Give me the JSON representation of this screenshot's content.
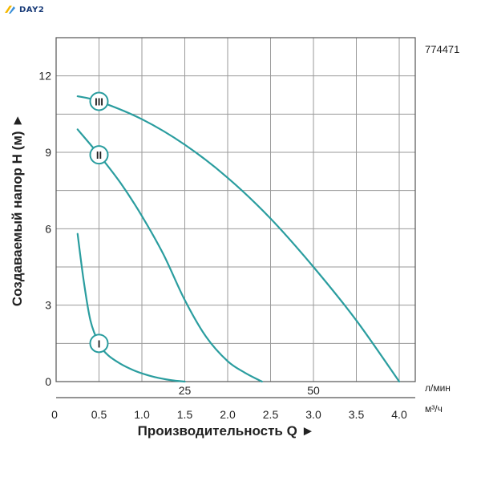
{
  "logo": {
    "text": "DAY2"
  },
  "chart_data": {
    "type": "line",
    "code": "774471",
    "xlabel": "Производительность Q ►",
    "ylabel": "Создаваемый напор H (м) ►",
    "x_unit_primary": "м³/ч",
    "x_unit_secondary": "л/мин",
    "xlim": [
      0,
      4.0
    ],
    "ylim": [
      0,
      13.5
    ],
    "x_ticks": [
      "0",
      "0.5",
      "1.0",
      "1.5",
      "2.0",
      "2.5",
      "3.0",
      "3.5",
      "4.0"
    ],
    "x_tick_values": [
      0,
      0.5,
      1.0,
      1.5,
      2.0,
      2.5,
      3.0,
      3.5,
      4.0
    ],
    "y_ticks": [
      "0",
      "3",
      "6",
      "9",
      "12"
    ],
    "y_tick_values": [
      0,
      3,
      6,
      9,
      12
    ],
    "secondary_ticks": [
      "25",
      "50"
    ],
    "secondary_tick_values": [
      1.5,
      3.0
    ],
    "grid": true,
    "line_color": "#2a9d9f",
    "series": [
      {
        "name": "I",
        "x": [
          0.25,
          0.32,
          0.4,
          0.5,
          0.6,
          0.75,
          0.9,
          1.05,
          1.2,
          1.35,
          1.5
        ],
        "y": [
          5.8,
          4.0,
          2.4,
          1.5,
          1.05,
          0.7,
          0.45,
          0.27,
          0.14,
          0.05,
          0.0
        ],
        "marker_x": 0.5,
        "marker_y": 1.5
      },
      {
        "name": "II",
        "x": [
          0.25,
          0.5,
          0.75,
          1.0,
          1.25,
          1.5,
          1.75,
          2.0,
          2.2,
          2.4
        ],
        "y": [
          9.9,
          8.9,
          7.8,
          6.5,
          5.0,
          3.2,
          1.75,
          0.8,
          0.35,
          0.0
        ],
        "marker_x": 0.5,
        "marker_y": 8.9
      },
      {
        "name": "III",
        "x": [
          0.25,
          0.5,
          1.0,
          1.5,
          2.0,
          2.5,
          3.0,
          3.5,
          4.0
        ],
        "y": [
          11.2,
          11.0,
          10.3,
          9.3,
          8.0,
          6.4,
          4.5,
          2.4,
          0.0
        ],
        "marker_x": 0.5,
        "marker_y": 11.0
      }
    ]
  }
}
